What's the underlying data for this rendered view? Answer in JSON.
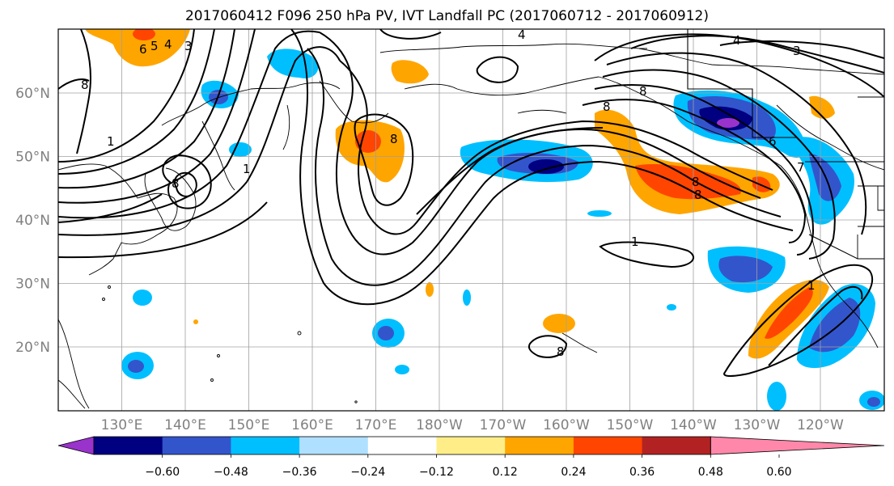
{
  "title": "2017060412 F096 250 hPa PV, IVT Landfall PC (2017060712 - 2017060912)",
  "lon_ticks": [
    "130°E",
    "140°E",
    "150°E",
    "160°E",
    "170°E",
    "180°W",
    "170°W",
    "160°W",
    "150°W",
    "140°W",
    "130°W",
    "120°W"
  ],
  "lat_ticks": [
    "60°N",
    "50°N",
    "40°N",
    "30°N",
    "20°N"
  ],
  "colorbar": {
    "colors": [
      "#9933cc",
      "#000080",
      "#3355cc",
      "#00bfff",
      "#b0e0ff",
      "#ffffff",
      "#ffee88",
      "#ffa500",
      "#ff4500",
      "#b22222",
      "#ff88aa"
    ],
    "labels": [
      "−0.60",
      "−0.48",
      "−0.36",
      "−0.24",
      "−0.12",
      "0.12",
      "0.24",
      "0.36",
      "0.48",
      "0.60"
    ]
  },
  "contour_labels": [
    "6",
    "5",
    "4",
    "3",
    "8",
    "8",
    "8",
    "8",
    "8",
    "8",
    "4",
    "4",
    "3",
    "1",
    "1",
    "1",
    "8",
    "8",
    "1",
    "6",
    "7"
  ]
}
